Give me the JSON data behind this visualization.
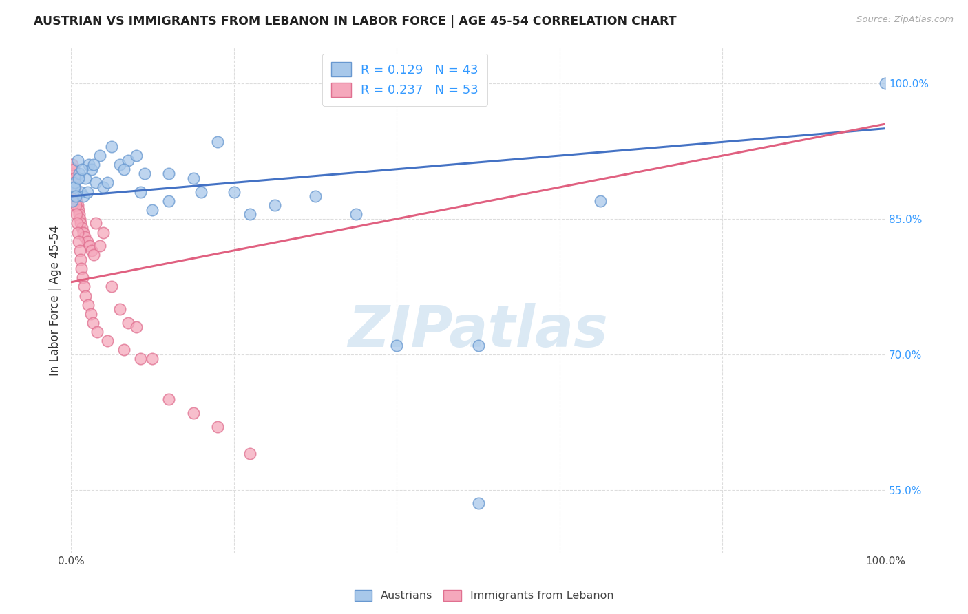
{
  "title": "AUSTRIAN VS IMMIGRANTS FROM LEBANON IN LABOR FORCE | AGE 45-54 CORRELATION CHART",
  "source": "Source: ZipAtlas.com",
  "ylabel": "In Labor Force | Age 45-54",
  "y_ticks": [
    55.0,
    70.0,
    85.0,
    100.0
  ],
  "xlim": [
    0,
    100
  ],
  "ylim": [
    48,
    104
  ],
  "R_aus": 0.129,
  "N_aus": 43,
  "R_leb": 0.237,
  "N_leb": 53,
  "blue_fill": "#a8c8ea",
  "blue_edge": "#6898d0",
  "blue_line": "#4472c4",
  "pink_fill": "#f5a8bc",
  "pink_edge": "#e07090",
  "pink_line": "#e06080",
  "legend_text_color": "#3399ff",
  "title_color": "#222222",
  "source_color": "#aaaaaa",
  "ylabel_color": "#333333",
  "yaxis_tick_color": "#3399ff",
  "grid_color": "#dddddd",
  "watermark_color": "#cde0f0",
  "background": "#ffffff",
  "aus_reg_x0": 0,
  "aus_reg_x1": 100,
  "aus_reg_y0": 87.5,
  "aus_reg_y1": 95.0,
  "leb_reg_x0": 0,
  "leb_reg_x1": 100,
  "leb_reg_y0": 78.0,
  "leb_reg_y1": 95.5,
  "aus_x": [
    0.3,
    0.5,
    0.8,
    1.0,
    1.2,
    1.5,
    1.8,
    2.0,
    2.2,
    2.5,
    3.0,
    3.5,
    4.0,
    5.0,
    6.0,
    7.0,
    8.0,
    9.0,
    10.0,
    12.0,
    15.0,
    18.0,
    20.0,
    25.0,
    30.0,
    35.0,
    40.0,
    50.0,
    0.2,
    0.4,
    0.6,
    0.9,
    1.3,
    2.8,
    4.5,
    6.5,
    8.5,
    12.0,
    16.0,
    22.0,
    65.0,
    100.0,
    50.0
  ],
  "aus_y": [
    88.5,
    89.0,
    91.5,
    90.0,
    88.0,
    87.5,
    89.5,
    88.0,
    91.0,
    90.5,
    89.0,
    92.0,
    88.5,
    93.0,
    91.0,
    91.5,
    92.0,
    90.0,
    86.0,
    90.0,
    89.5,
    93.5,
    88.0,
    86.5,
    87.5,
    85.5,
    71.0,
    71.0,
    87.0,
    88.5,
    87.5,
    89.5,
    90.5,
    91.0,
    89.0,
    90.5,
    88.0,
    87.0,
    88.0,
    85.5,
    87.0,
    100.0,
    53.5
  ],
  "leb_x": [
    0.1,
    0.2,
    0.3,
    0.4,
    0.5,
    0.6,
    0.7,
    0.8,
    0.9,
    1.0,
    1.1,
    1.2,
    1.3,
    1.5,
    1.7,
    2.0,
    2.3,
    2.5,
    2.8,
    3.0,
    3.5,
    4.0,
    5.0,
    6.0,
    7.0,
    8.0,
    10.0,
    0.15,
    0.25,
    0.35,
    0.45,
    0.55,
    0.65,
    0.75,
    0.85,
    0.95,
    1.05,
    1.15,
    1.25,
    1.4,
    1.6,
    1.8,
    2.1,
    2.4,
    2.7,
    3.2,
    4.5,
    6.5,
    8.5,
    12.0,
    15.0,
    18.0,
    22.0
  ],
  "leb_y": [
    90.0,
    91.0,
    90.5,
    89.5,
    88.5,
    87.5,
    87.0,
    86.5,
    86.0,
    85.5,
    85.0,
    84.5,
    84.0,
    83.5,
    83.0,
    82.5,
    82.0,
    81.5,
    81.0,
    84.5,
    82.0,
    83.5,
    77.5,
    75.0,
    73.5,
    73.0,
    69.5,
    86.5,
    88.0,
    89.0,
    87.5,
    86.5,
    85.5,
    84.5,
    83.5,
    82.5,
    81.5,
    80.5,
    79.5,
    78.5,
    77.5,
    76.5,
    75.5,
    74.5,
    73.5,
    72.5,
    71.5,
    70.5,
    69.5,
    65.0,
    63.5,
    62.0,
    59.0
  ]
}
